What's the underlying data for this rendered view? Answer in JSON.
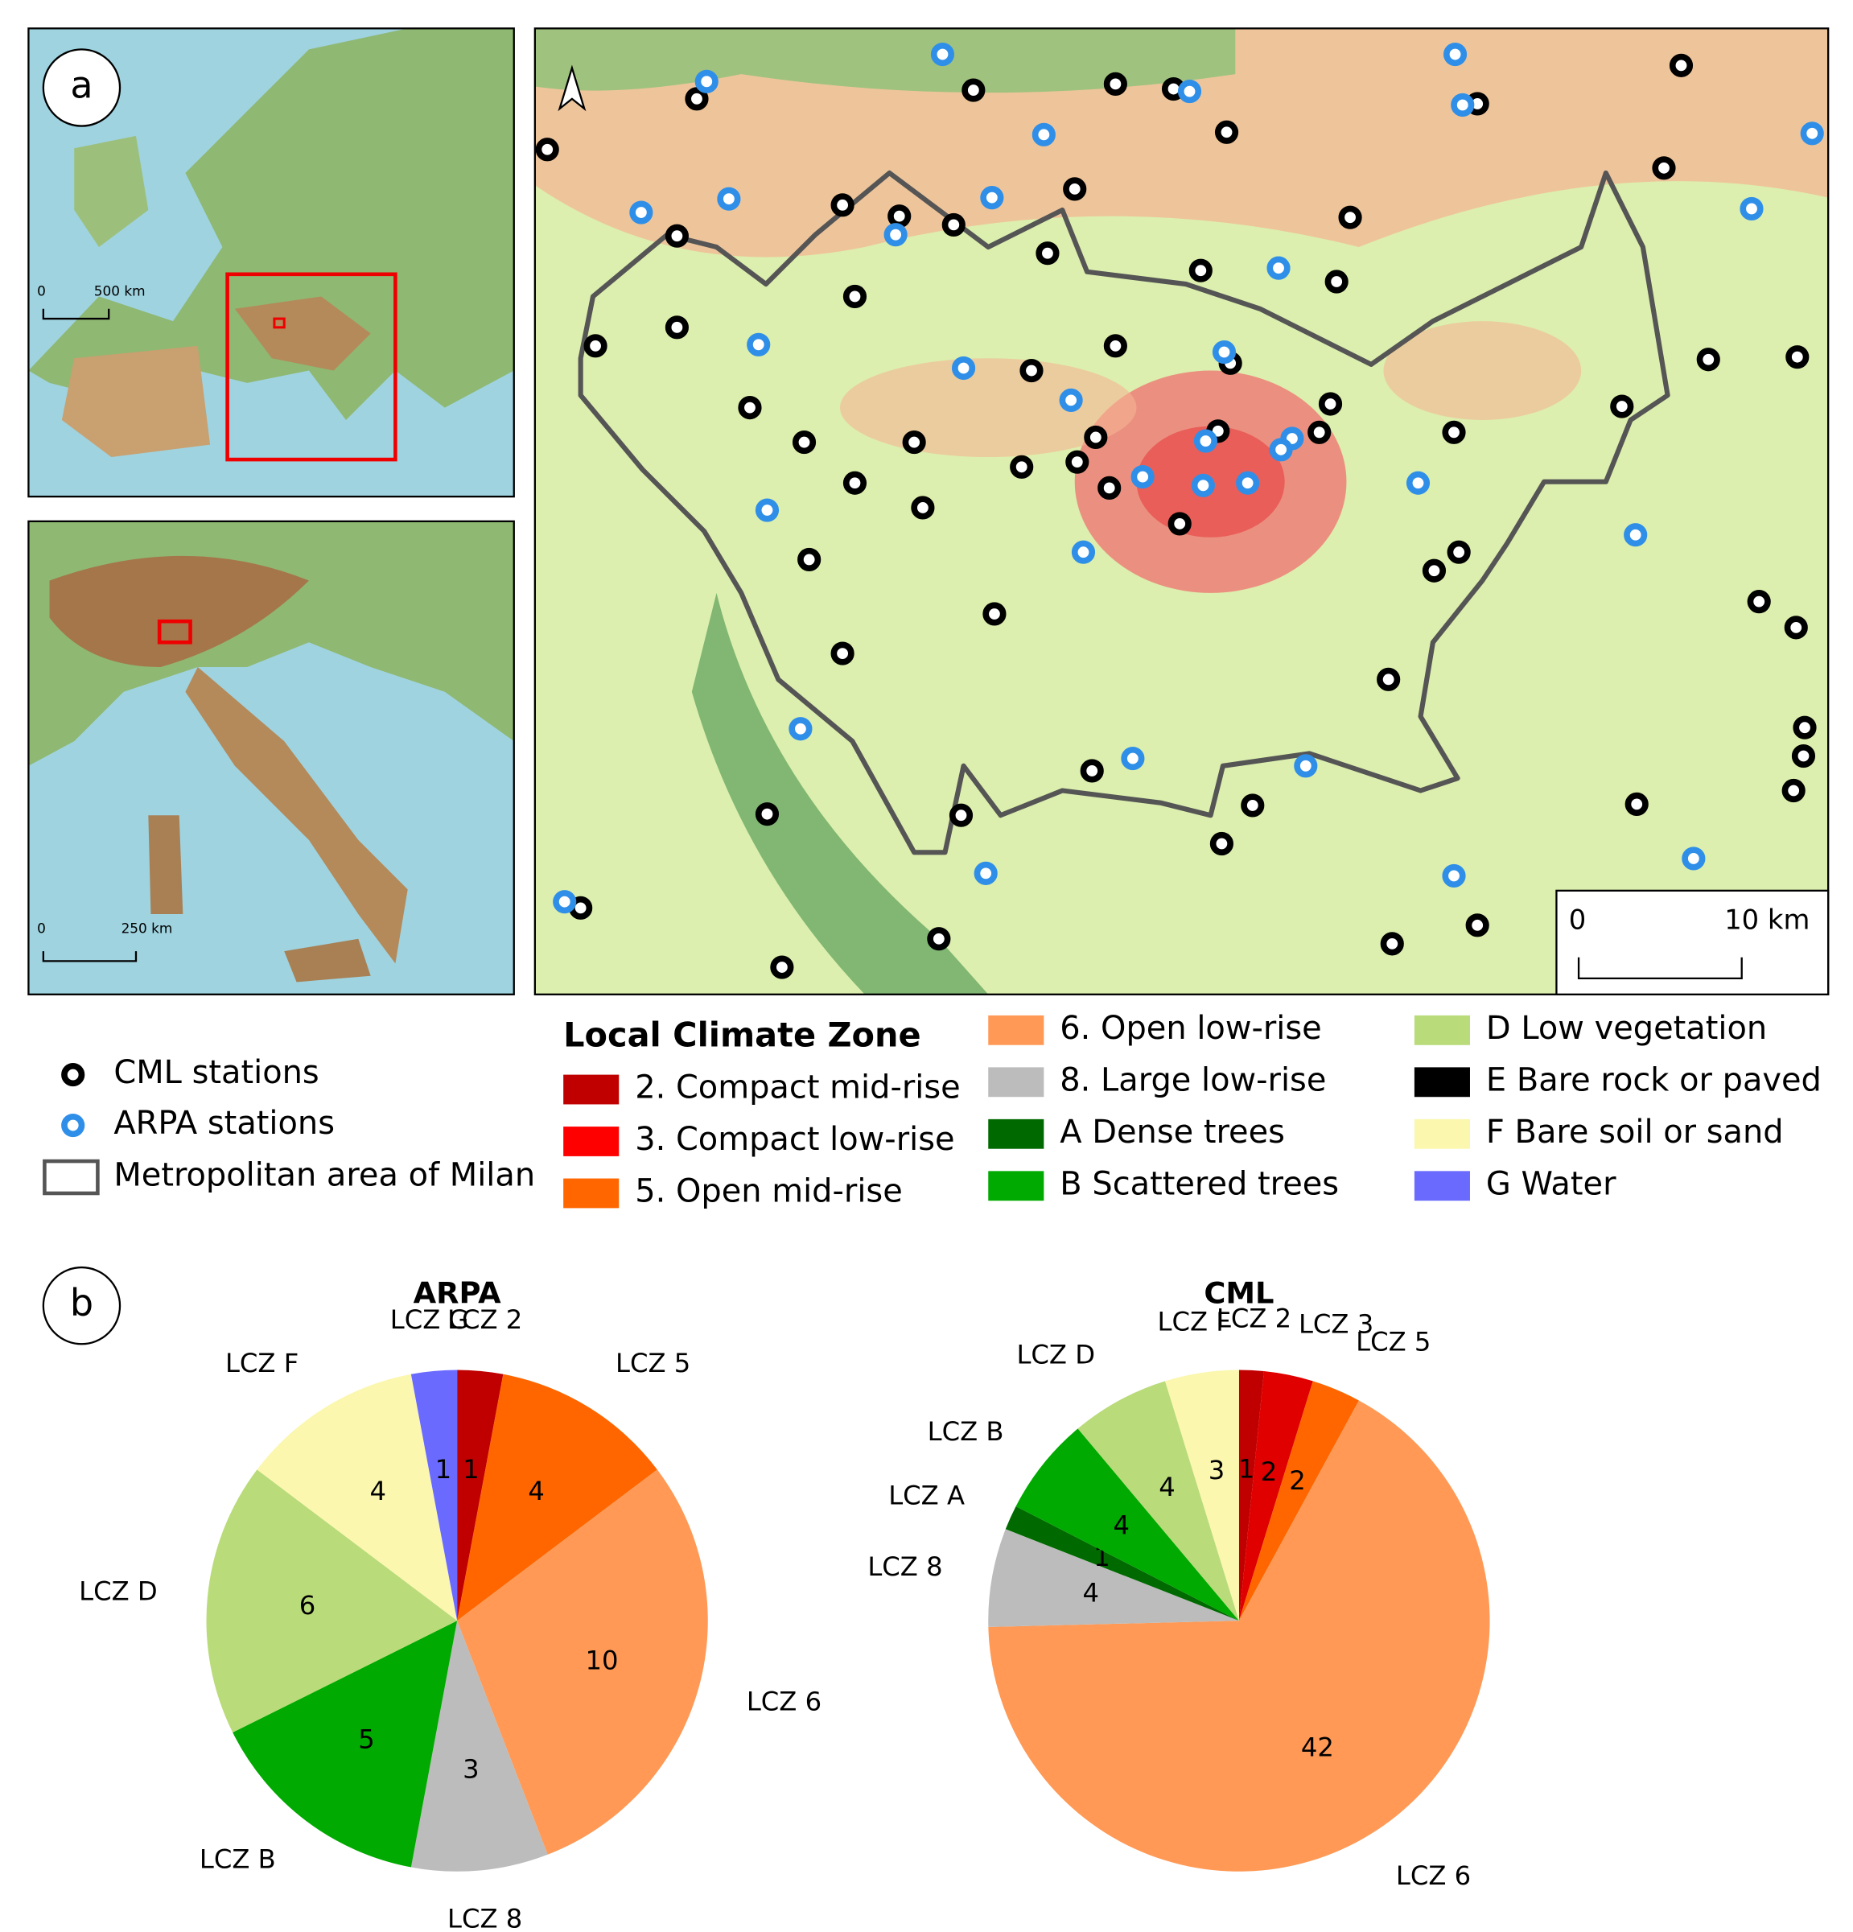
{
  "figure": {
    "panel_a": "a",
    "panel_b": "b",
    "inset1_scale": {
      "zero": "0",
      "label": "500 km"
    },
    "inset2_scale": {
      "zero": "0",
      "label": "250 km"
    },
    "main_scale": {
      "zero": "0",
      "label": "10 km"
    },
    "stations": [
      {
        "label": "CML stations",
        "color": "#000000"
      },
      {
        "label": "ARPA stations",
        "color": "#2f8fe8"
      }
    ],
    "boundary": "Metropolitan area of Milan",
    "legend": {
      "title": "Local Climate Zone",
      "items": [
        {
          "label": "2. Compact mid-rise",
          "color": "#c00000"
        },
        {
          "label": "3. Compact low-rise",
          "color": "#ff0000"
        },
        {
          "label": "5. Open mid-rise",
          "color": "#ff6600"
        },
        {
          "label": "6. Open low-rise",
          "color": "#ff9955"
        },
        {
          "label": "8. Large low-rise",
          "color": "#bcbcbc"
        },
        {
          "label": "A Dense trees",
          "color": "#006a00"
        },
        {
          "label": "B Scattered trees",
          "color": "#00aa00"
        },
        {
          "label": "D Low vegetation",
          "color": "#b9db79"
        },
        {
          "label": "E Bare rock or paved",
          "color": "#000000"
        },
        {
          "label": "F Bare soil or sand",
          "color": "#fbf7ae"
        },
        {
          "label": "G Water",
          "color": "#6a6aff"
        }
      ]
    }
  },
  "chart_data": [
    {
      "type": "pie",
      "title": "ARPA",
      "categories": [
        "LCZ 2",
        "LCZ 5",
        "LCZ 6",
        "LCZ 8",
        "LCZ B",
        "LCZ D",
        "LCZ F",
        "LCZ G"
      ],
      "values": [
        1,
        4,
        10,
        3,
        5,
        6,
        4,
        1
      ],
      "colors": [
        "#c00000",
        "#ff6600",
        "#ff9955",
        "#bcbcbc",
        "#00aa00",
        "#b9db79",
        "#fbf7ae",
        "#6a6aff"
      ]
    },
    {
      "type": "pie",
      "title": "CML",
      "categories": [
        "LCZ 2",
        "LCZ 3",
        "LCZ 5",
        "LCZ 6",
        "LCZ 8",
        "LCZ A",
        "LCZ B",
        "LCZ D",
        "LCZ F"
      ],
      "values": [
        1,
        2,
        2,
        42,
        4,
        1,
        4,
        4,
        3
      ],
      "colors": [
        "#c00000",
        "#e00000",
        "#ff6600",
        "#ff9955",
        "#bcbcbc",
        "#006a00",
        "#00aa00",
        "#b9db79",
        "#fbf7ae"
      ]
    }
  ]
}
